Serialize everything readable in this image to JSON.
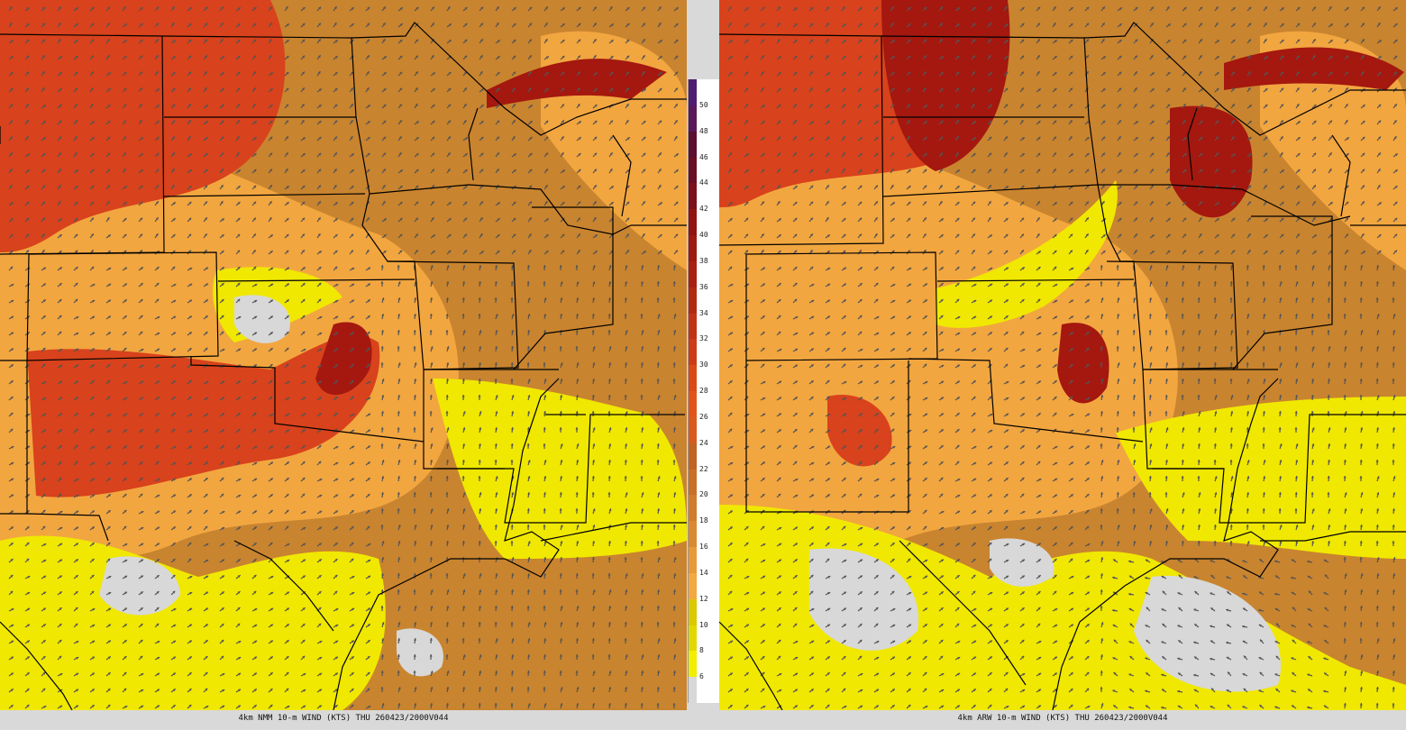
{
  "panels": [
    {
      "caption": "4km NMM 10-m WIND (KTS) THU 260423/2000V044"
    },
    {
      "caption": "4km ARW 10-m WIND (KTS) THU 260423/2000V044"
    }
  ],
  "colorbar": {
    "labels": [
      "6",
      "8",
      "10",
      "12",
      "14",
      "16",
      "18",
      "20",
      "22",
      "24",
      "26",
      "28",
      "30",
      "32",
      "34",
      "36",
      "38",
      "40",
      "42",
      "44",
      "46",
      "48",
      "50"
    ],
    "colors": [
      "#d8d8d8",
      "#f2ee00",
      "#e0d800",
      "#dcc800",
      "#f4a840",
      "#e89a38",
      "#d98a30",
      "#d07c2c",
      "#c87028",
      "#c06424",
      "#d85a20",
      "#e0541c",
      "#d84a18",
      "#cc3c16",
      "#c03214",
      "#b02a12",
      "#a82010",
      "#9c1a10",
      "#901410",
      "#7a1018",
      "#6a1024",
      "#5a1230",
      "#5a1a5a",
      "#501e70"
    ],
    "zero_at": "bottom"
  },
  "map_colors": {
    "ocean_gray": "#d8d8d8",
    "yellow": "#f0e800",
    "light_orange": "#f2a640",
    "brown": "#c9842f",
    "red": "#d8421c",
    "dark_red": "#a4180f",
    "border": "#000000",
    "arrow": "#555555"
  }
}
